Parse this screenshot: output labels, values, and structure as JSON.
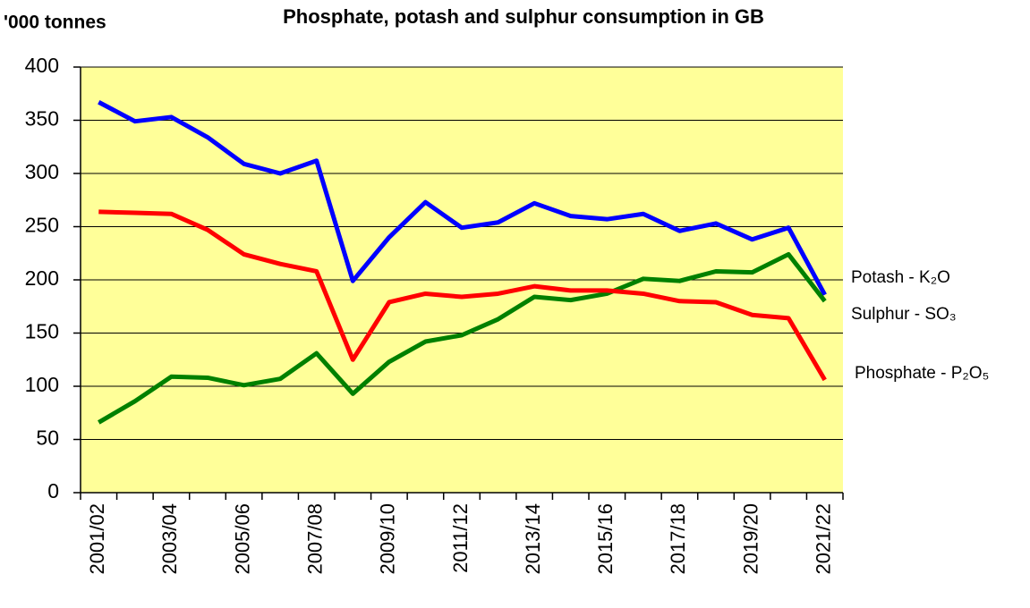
{
  "chart_data": {
    "type": "line",
    "title": "Phosphate, potash and sulphur consumption in GB",
    "ylabel": "'000 tonnes",
    "categories": [
      "2001/02",
      null,
      "2003/04",
      null,
      "2005/06",
      null,
      "2007/08",
      null,
      "2009/10",
      null,
      "2011/12",
      null,
      "2013/14",
      null,
      "2015/16",
      null,
      "2017/18",
      null,
      "2019/20",
      null,
      "2021/22"
    ],
    "series": [
      {
        "name": "Potash - K₂O",
        "color": "#0000ff",
        "values": [
          367,
          349,
          353,
          334,
          309,
          300,
          312,
          199,
          240,
          273,
          249,
          254,
          272,
          260,
          257,
          262,
          246,
          253,
          238,
          249,
          186
        ]
      },
      {
        "name": "Sulphur  - SO₃",
        "color": "#008000",
        "values": [
          66,
          86,
          109,
          108,
          101,
          107,
          131,
          93,
          123,
          142,
          148,
          163,
          184,
          181,
          187,
          201,
          199,
          208,
          207,
          224,
          180
        ]
      },
      {
        "name": "Phosphate - P₂O₅",
        "color": "#ff0000",
        "values": [
          264,
          263,
          262,
          247,
          224,
          215,
          208,
          125,
          179,
          187,
          184,
          187,
          194,
          190,
          190,
          187,
          180,
          179,
          167,
          164,
          106
        ]
      }
    ],
    "ylim": [
      0,
      400
    ],
    "yticks": [
      0,
      50,
      100,
      150,
      200,
      250,
      300,
      350,
      400
    ],
    "grid": true,
    "plot_background": "#ffff99"
  }
}
